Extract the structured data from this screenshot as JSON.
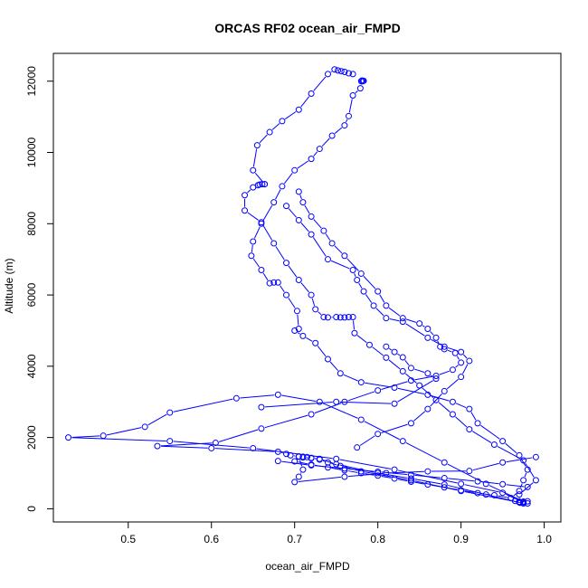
{
  "chart_data": {
    "type": "line",
    "title": "ORCAS RF02 ocean_air_FMPD",
    "xlabel": "ocean_air_FMPD",
    "ylabel": "Altitude (m)",
    "xlim": [
      0.41,
      1.02
    ],
    "ylim": [
      -370,
      12780
    ],
    "x_ticks": [
      0.5,
      0.6,
      0.7,
      0.8,
      0.9,
      1.0
    ],
    "x_tick_labels": [
      "0.5",
      "0.6",
      "0.7",
      "0.8",
      "0.9",
      "1.0"
    ],
    "y_ticks": [
      0,
      2000,
      4000,
      6000,
      8000,
      10000,
      12000
    ],
    "y_tick_labels": [
      "0",
      "2000",
      "4000",
      "6000",
      "8000",
      "10000",
      "12000"
    ],
    "grid": false,
    "legend": "none",
    "marker": "open-circle",
    "color": "#0000ff",
    "series": [
      {
        "values": [
          [
            0.971,
            170
          ],
          [
            0.97,
            400
          ],
          [
            0.99,
            800
          ],
          [
            0.975,
            1360
          ],
          [
            0.94,
            1800
          ],
          [
            0.91,
            2230
          ],
          [
            0.89,
            2650
          ],
          [
            0.87,
            3050
          ],
          [
            0.85,
            3460
          ],
          [
            0.83,
            3860
          ],
          [
            0.81,
            4240
          ],
          [
            0.79,
            4600
          ],
          [
            0.772,
            4930
          ],
          [
            0.77,
            5380
          ],
          [
            0.765,
            5380
          ],
          [
            0.76,
            5370
          ],
          [
            0.755,
            5370
          ],
          [
            0.75,
            5380
          ],
          [
            0.74,
            5370
          ],
          [
            0.735,
            5380
          ],
          [
            0.725,
            5600
          ],
          [
            0.72,
            6000
          ],
          [
            0.705,
            6420
          ],
          [
            0.69,
            6900
          ],
          [
            0.675,
            7450
          ],
          [
            0.66,
            8040
          ],
          [
            0.64,
            8370
          ],
          [
            0.64,
            8800
          ],
          [
            0.65,
            9020
          ],
          [
            0.656,
            9080
          ],
          [
            0.658,
            9100
          ],
          [
            0.661,
            9110
          ],
          [
            0.664,
            9110
          ]
        ]
      },
      {
        "values": [
          [
            0.664,
            9110
          ],
          [
            0.65,
            9500
          ],
          [
            0.655,
            10200
          ],
          [
            0.67,
            10570
          ],
          [
            0.685,
            10880
          ],
          [
            0.705,
            11200
          ],
          [
            0.72,
            11650
          ],
          [
            0.74,
            12200
          ],
          [
            0.748,
            12330
          ],
          [
            0.752,
            12300
          ],
          [
            0.756,
            12280
          ],
          [
            0.76,
            12260
          ],
          [
            0.765,
            12220
          ],
          [
            0.77,
            12200
          ]
        ]
      },
      {
        "values": [
          [
            0.78,
            12000
          ],
          [
            0.781,
            12020
          ],
          [
            0.783,
            12010
          ],
          [
            0.782,
            12000
          ],
          [
            0.779,
            11800
          ],
          [
            0.77,
            11600
          ],
          [
            0.765,
            11020
          ],
          [
            0.76,
            10760
          ],
          [
            0.745,
            10470
          ],
          [
            0.73,
            10100
          ],
          [
            0.72,
            9820
          ],
          [
            0.7,
            9500
          ],
          [
            0.685,
            9050
          ],
          [
            0.675,
            8600
          ],
          [
            0.66,
            8000
          ],
          [
            0.65,
            7500
          ],
          [
            0.648,
            7100
          ],
          [
            0.66,
            6700
          ],
          [
            0.67,
            6330
          ],
          [
            0.675,
            6350
          ],
          [
            0.68,
            6350
          ],
          [
            0.69,
            6000
          ],
          [
            0.703,
            5550
          ],
          [
            0.705,
            5050
          ]
        ]
      },
      {
        "values": [
          [
            0.7,
            5000
          ],
          [
            0.71,
            4850
          ],
          [
            0.725,
            4650
          ],
          [
            0.74,
            4200
          ],
          [
            0.755,
            3800
          ],
          [
            0.78,
            3550
          ],
          [
            0.82,
            3400
          ],
          [
            0.86,
            3200
          ],
          [
            0.89,
            3000
          ],
          [
            0.91,
            2800
          ],
          [
            0.92,
            2400
          ],
          [
            0.95,
            1900
          ],
          [
            0.97,
            1500
          ],
          [
            0.98,
            1100
          ],
          [
            0.975,
            800
          ],
          [
            0.97,
            500
          ],
          [
            0.96,
            300
          ],
          [
            0.965,
            220
          ],
          [
            0.97,
            200
          ],
          [
            0.975,
            200
          ],
          [
            0.98,
            210
          ]
        ]
      },
      {
        "values": [
          [
            0.98,
            150
          ],
          [
            0.93,
            700
          ],
          [
            0.88,
            1300
          ],
          [
            0.83,
            1900
          ],
          [
            0.78,
            2500
          ],
          [
            0.73,
            3000
          ],
          [
            0.68,
            3200
          ],
          [
            0.63,
            3100
          ],
          [
            0.55,
            2700
          ],
          [
            0.52,
            2300
          ],
          [
            0.47,
            2050
          ],
          [
            0.428,
            2000
          ],
          [
            0.55,
            1900
          ],
          [
            0.65,
            1700
          ],
          [
            0.75,
            1400
          ],
          [
            0.82,
            1100
          ],
          [
            0.9,
            700
          ],
          [
            0.95,
            450
          ],
          [
            0.975,
            180
          ]
        ]
      },
      {
        "values": [
          [
            0.97,
            180
          ],
          [
            0.9,
            500
          ],
          [
            0.84,
            800
          ],
          [
            0.78,
            1050
          ],
          [
            0.755,
            1200
          ],
          [
            0.74,
            1300
          ],
          [
            0.73,
            1380
          ],
          [
            0.72,
            1430
          ],
          [
            0.715,
            1450
          ],
          [
            0.71,
            1460
          ],
          [
            0.705,
            1470
          ],
          [
            0.695,
            1500
          ],
          [
            0.69,
            1540
          ],
          [
            0.68,
            1600
          ],
          [
            0.6,
            1700
          ],
          [
            0.535,
            1760
          ],
          [
            0.605,
            1850
          ],
          [
            0.66,
            2250
          ],
          [
            0.72,
            2650
          ],
          [
            0.76,
            3000
          ],
          [
            0.8,
            3320
          ],
          [
            0.84,
            3600
          ],
          [
            0.87,
            3730
          ],
          [
            0.89,
            3900
          ],
          [
            0.9,
            4100
          ],
          [
            0.893,
            4370
          ],
          [
            0.88,
            4480
          ]
        ]
      },
      {
        "values": [
          [
            0.875,
            4550
          ],
          [
            0.87,
            4800
          ],
          [
            0.86,
            5050
          ],
          [
            0.85,
            5200
          ],
          [
            0.83,
            5350
          ],
          [
            0.81,
            5700
          ],
          [
            0.8,
            6100
          ],
          [
            0.78,
            6600
          ],
          [
            0.76,
            7100
          ],
          [
            0.745,
            7450
          ],
          [
            0.735,
            7800
          ],
          [
            0.72,
            8200
          ],
          [
            0.71,
            8600
          ],
          [
            0.705,
            8900
          ]
        ]
      },
      {
        "values": [
          [
            0.975,
            150
          ],
          [
            0.93,
            400
          ],
          [
            0.88,
            680
          ],
          [
            0.84,
            850
          ],
          [
            0.8,
            1000
          ],
          [
            0.75,
            1250
          ],
          [
            0.73,
            1400
          ],
          [
            0.72,
            1420
          ],
          [
            0.71,
            1440
          ],
          [
            0.705,
            1460
          ],
          [
            0.71,
            1100
          ],
          [
            0.705,
            900
          ],
          [
            0.7,
            750
          ],
          [
            0.76,
            900
          ],
          [
            0.81,
            1000
          ],
          [
            0.86,
            1050
          ],
          [
            0.91,
            1060
          ],
          [
            0.95,
            1300
          ],
          [
            0.99,
            1450
          ]
        ]
      },
      {
        "values": [
          [
            0.775,
            1720
          ],
          [
            0.8,
            2100
          ],
          [
            0.84,
            2400
          ],
          [
            0.86,
            2800
          ],
          [
            0.88,
            3300
          ],
          [
            0.9,
            3700
          ],
          [
            0.91,
            4150
          ],
          [
            0.9,
            4400
          ],
          [
            0.88,
            4550
          ],
          [
            0.86,
            4800
          ],
          [
            0.83,
            5250
          ],
          [
            0.81,
            5350
          ],
          [
            0.795,
            5700
          ],
          [
            0.783,
            6100
          ],
          [
            0.775,
            6420
          ],
          [
            0.77,
            6700
          ],
          [
            0.74,
            7000
          ],
          [
            0.72,
            7700
          ],
          [
            0.705,
            8100
          ],
          [
            0.69,
            8500
          ]
        ]
      },
      {
        "values": [
          [
            0.96,
            300
          ],
          [
            0.94,
            380
          ],
          [
            0.92,
            440
          ],
          [
            0.9,
            520
          ],
          [
            0.88,
            600
          ],
          [
            0.86,
            680
          ],
          [
            0.84,
            760
          ],
          [
            0.82,
            850
          ],
          [
            0.8,
            930
          ],
          [
            0.78,
            1000
          ],
          [
            0.76,
            1080
          ],
          [
            0.74,
            1160
          ],
          [
            0.72,
            1240
          ],
          [
            0.7,
            1330
          ]
        ]
      },
      {
        "values": [
          [
            0.68,
            1340
          ],
          [
            0.72,
            1220
          ],
          [
            0.76,
            1130
          ],
          [
            0.8,
            1040
          ],
          [
            0.84,
            950
          ],
          [
            0.88,
            860
          ],
          [
            0.92,
            770
          ],
          [
            0.95,
            690
          ],
          [
            0.98,
            610
          ]
        ]
      },
      {
        "values": [
          [
            0.66,
            2850
          ],
          [
            0.75,
            3000
          ],
          [
            0.82,
            2950
          ],
          [
            0.87,
            3650
          ],
          [
            0.86,
            3800
          ],
          [
            0.84,
            3950
          ],
          [
            0.83,
            4250
          ],
          [
            0.82,
            4400
          ],
          [
            0.81,
            4550
          ]
        ]
      }
    ]
  }
}
